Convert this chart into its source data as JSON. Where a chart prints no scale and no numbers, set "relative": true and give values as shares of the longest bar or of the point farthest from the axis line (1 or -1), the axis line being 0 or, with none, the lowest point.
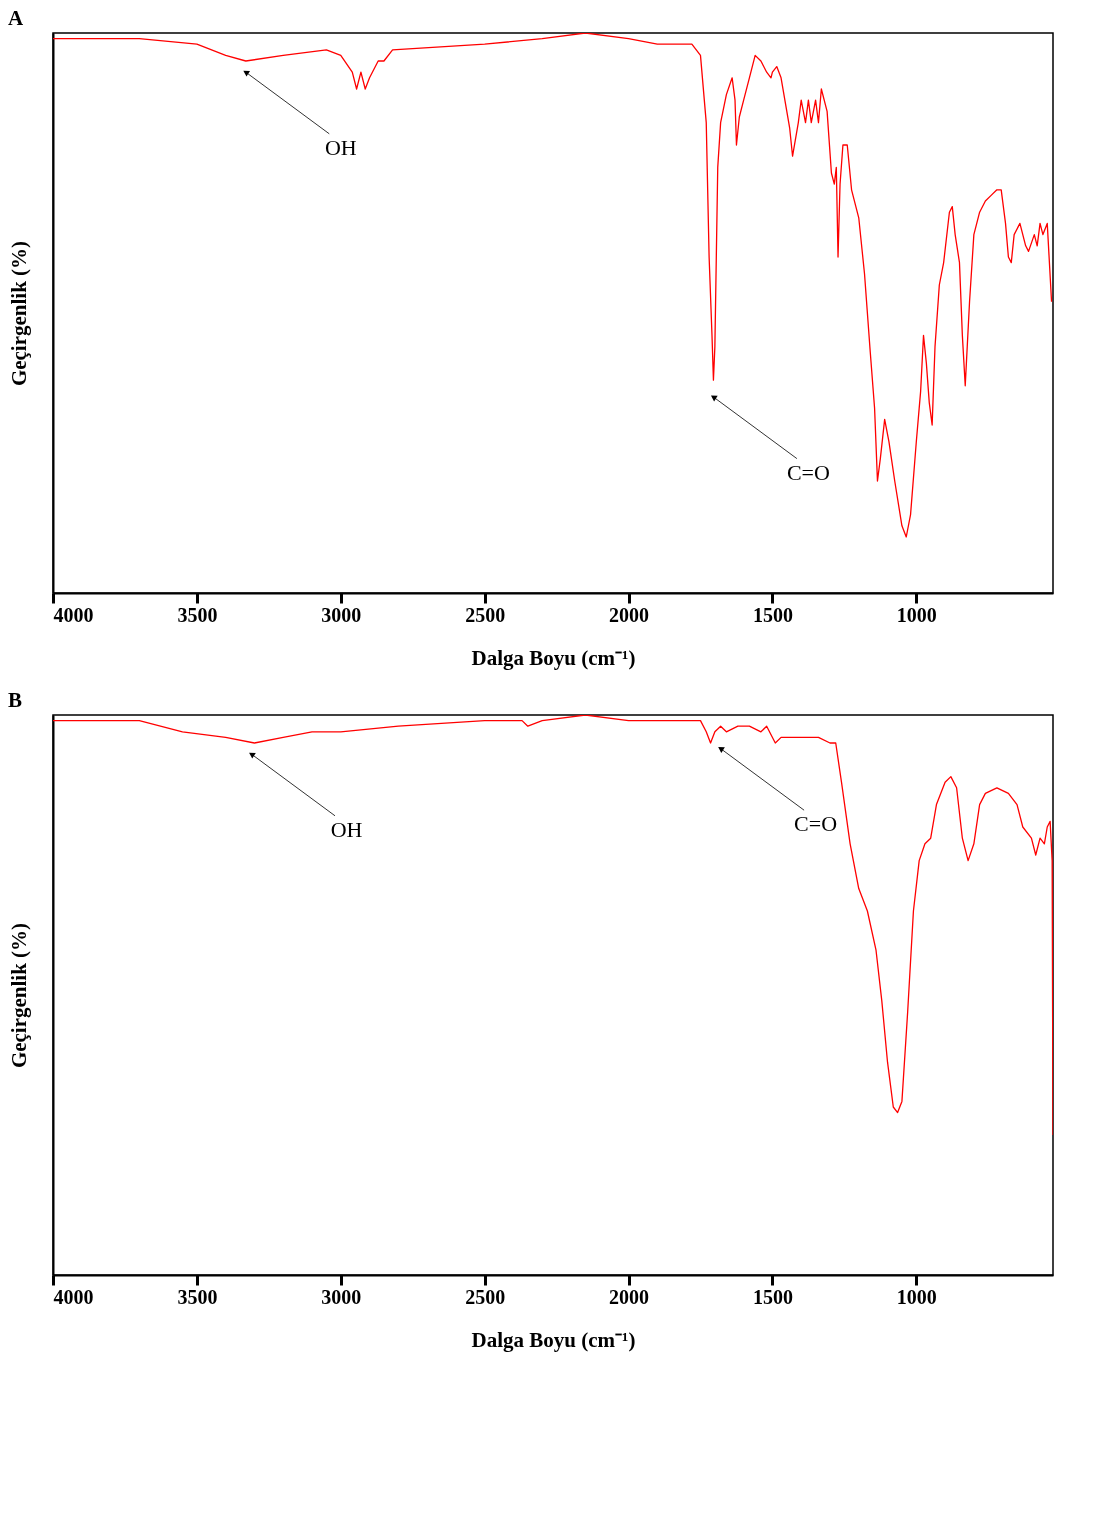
{
  "chart_data": [
    {
      "type": "line",
      "title": "A",
      "xlabel": "Dalga Boyu (cm⁻¹)",
      "ylabel": "Geçirgenlik (%)",
      "relative": true,
      "xlim": [
        4000,
        525
      ],
      "xticks": [
        4000,
        3500,
        3000,
        2500,
        2000,
        1500,
        1000
      ],
      "grid": false,
      "tick_labels": "x",
      "line_style": "solid",
      "marker": "none",
      "x": [
        4000,
        3700,
        3500,
        3400,
        3330,
        3200,
        3050,
        3000,
        2960,
        2945,
        2930,
        2915,
        2900,
        2870,
        2850,
        2820,
        2500,
        2300,
        2150,
        2000,
        1900,
        1850,
        1780,
        1750,
        1730,
        1720,
        1710,
        1705,
        1700,
        1690,
        1680,
        1660,
        1640,
        1630,
        1625,
        1615,
        1600,
        1580,
        1560,
        1540,
        1520,
        1505,
        1500,
        1485,
        1470,
        1440,
        1430,
        1410,
        1400,
        1385,
        1375,
        1365,
        1350,
        1340,
        1330,
        1310,
        1295,
        1285,
        1278,
        1272,
        1265,
        1255,
        1240,
        1225,
        1200,
        1180,
        1160,
        1145,
        1135,
        1125,
        1110,
        1095,
        1075,
        1050,
        1035,
        1020,
        1000,
        985,
        975,
        965,
        955,
        945,
        935,
        920,
        905,
        885,
        875,
        865,
        850,
        840,
        830,
        815,
        800,
        780,
        760,
        740,
        720,
        705,
        690,
        680,
        670,
        660,
        640,
        620,
        610,
        590,
        580,
        570,
        560,
        545,
        530
      ],
      "series": [
        {
          "color": "#ff0000",
          "values": [
            0.99,
            0.99,
            0.98,
            0.96,
            0.95,
            0.96,
            0.97,
            0.96,
            0.93,
            0.9,
            0.93,
            0.9,
            0.92,
            0.95,
            0.95,
            0.97,
            0.98,
            0.99,
            1.0,
            0.99,
            0.98,
            0.98,
            0.98,
            0.96,
            0.84,
            0.6,
            0.46,
            0.38,
            0.44,
            0.76,
            0.84,
            0.89,
            0.92,
            0.88,
            0.8,
            0.85,
            0.88,
            0.92,
            0.96,
            0.95,
            0.93,
            0.92,
            0.93,
            0.94,
            0.92,
            0.83,
            0.78,
            0.84,
            0.88,
            0.84,
            0.88,
            0.84,
            0.88,
            0.84,
            0.9,
            0.86,
            0.75,
            0.73,
            0.76,
            0.6,
            0.73,
            0.8,
            0.8,
            0.72,
            0.67,
            0.57,
            0.43,
            0.33,
            0.2,
            0.24,
            0.31,
            0.27,
            0.2,
            0.12,
            0.1,
            0.14,
            0.27,
            0.36,
            0.46,
            0.41,
            0.34,
            0.3,
            0.44,
            0.55,
            0.59,
            0.68,
            0.69,
            0.64,
            0.59,
            0.46,
            0.37,
            0.52,
            0.64,
            0.68,
            0.7,
            0.71,
            0.72,
            0.72,
            0.66,
            0.6,
            0.59,
            0.64,
            0.66,
            0.62,
            0.61,
            0.64,
            0.62,
            0.66,
            0.64,
            0.66,
            0.52
          ]
        }
      ],
      "annotations": [
        {
          "text": "OH",
          "x": 3330,
          "y": 0.93
        },
        {
          "text": "C=O",
          "x": 1705,
          "y": 0.35
        }
      ]
    },
    {
      "type": "line",
      "title": "B",
      "xlabel": "Dalga Boyu (cm⁻¹)",
      "ylabel": "Geçirgenlik (%)",
      "relative": true,
      "xlim": [
        4000,
        525
      ],
      "xticks": [
        4000,
        3500,
        3000,
        2500,
        2000,
        1500,
        1000
      ],
      "grid": false,
      "tick_labels": "x",
      "line_style": "solid",
      "marker": "none",
      "x": [
        4000,
        3700,
        3550,
        3400,
        3300,
        3200,
        3100,
        3000,
        2800,
        2500,
        2370,
        2350,
        2300,
        2150,
        2000,
        1800,
        1750,
        1730,
        1715,
        1700,
        1680,
        1660,
        1620,
        1580,
        1540,
        1520,
        1490,
        1470,
        1430,
        1390,
        1340,
        1300,
        1280,
        1260,
        1230,
        1200,
        1170,
        1140,
        1120,
        1100,
        1080,
        1065,
        1050,
        1030,
        1010,
        990,
        970,
        950,
        930,
        900,
        880,
        860,
        840,
        820,
        800,
        780,
        760,
        720,
        680,
        650,
        630,
        600,
        585,
        570,
        555,
        545,
        535,
        528,
        525
      ],
      "series": [
        {
          "color": "#ff0000",
          "values": [
            0.99,
            0.99,
            0.97,
            0.96,
            0.95,
            0.96,
            0.97,
            0.97,
            0.98,
            0.99,
            0.99,
            0.98,
            0.99,
            1.0,
            0.99,
            0.99,
            0.99,
            0.97,
            0.95,
            0.97,
            0.98,
            0.97,
            0.98,
            0.98,
            0.97,
            0.98,
            0.95,
            0.96,
            0.96,
            0.96,
            0.96,
            0.95,
            0.95,
            0.88,
            0.77,
            0.69,
            0.65,
            0.58,
            0.49,
            0.38,
            0.3,
            0.29,
            0.31,
            0.47,
            0.65,
            0.74,
            0.77,
            0.78,
            0.84,
            0.88,
            0.89,
            0.87,
            0.78,
            0.74,
            0.77,
            0.84,
            0.86,
            0.87,
            0.86,
            0.84,
            0.8,
            0.78,
            0.75,
            0.78,
            0.77,
            0.8,
            0.81,
            0.74,
            0.25
          ]
        }
      ],
      "annotations": [
        {
          "text": "OH",
          "x": 3310,
          "y": 0.93
        },
        {
          "text": "C=O",
          "x": 1680,
          "y": 0.94
        }
      ]
    }
  ]
}
